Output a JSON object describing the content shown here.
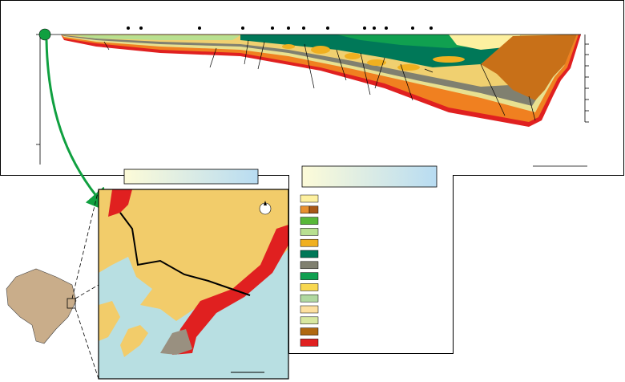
{
  "legend": {
    "swatches": [
      "#fdf0a0",
      [
        "#e89030",
        "#a85818"
      ],
      "#58b838",
      "#b8e090",
      "#f0b020",
      "#007858",
      "#808070",
      "#10a050",
      "#f8d850",
      "#b0d8a0",
      "#fde0a0",
      "#d8e8a0",
      "#b06810",
      "#e02020"
    ]
  }
}
